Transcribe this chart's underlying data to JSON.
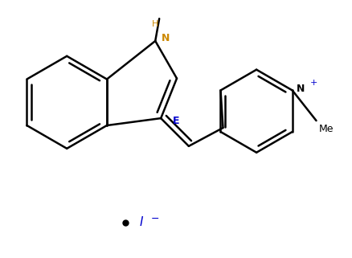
{
  "background_color": "#ffffff",
  "line_color": "#000000",
  "blue_color": "#0000cd",
  "line_width": 1.8,
  "figsize": [
    4.39,
    3.21
  ],
  "dpi": 100,
  "xlim": [
    0,
    439
  ],
  "ylim": [
    0,
    321
  ]
}
